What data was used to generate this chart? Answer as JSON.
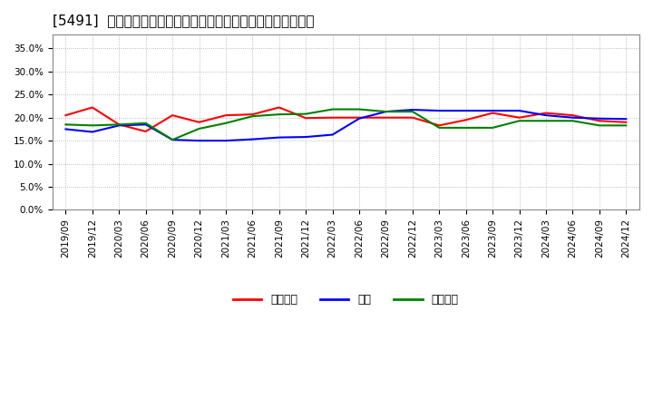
{
  "title": "[5491]  売上債権、在庫、買入債務の総資産に対する比率の推移",
  "x_labels": [
    "2019/09",
    "2019/12",
    "2020/03",
    "2020/06",
    "2020/09",
    "2020/12",
    "2021/03",
    "2021/06",
    "2021/09",
    "2021/12",
    "2022/03",
    "2022/06",
    "2022/09",
    "2022/12",
    "2023/03",
    "2023/06",
    "2023/09",
    "2023/12",
    "2024/03",
    "2024/06",
    "2024/09",
    "2024/12"
  ],
  "receivables": [
    0.205,
    0.222,
    0.185,
    0.17,
    0.205,
    0.19,
    0.205,
    0.207,
    0.222,
    0.199,
    0.2,
    0.2,
    0.2,
    0.2,
    0.183,
    0.195,
    0.21,
    0.2,
    0.21,
    0.205,
    0.193,
    0.19
  ],
  "inventory": [
    0.175,
    0.169,
    0.183,
    0.185,
    0.152,
    0.15,
    0.15,
    0.153,
    0.157,
    0.158,
    0.163,
    0.198,
    0.213,
    0.217,
    0.215,
    0.215,
    0.215,
    0.215,
    0.205,
    0.2,
    0.198,
    0.197
  ],
  "payables": [
    0.185,
    0.183,
    0.185,
    0.188,
    0.152,
    0.176,
    0.188,
    0.203,
    0.207,
    0.208,
    0.218,
    0.218,
    0.213,
    0.213,
    0.178,
    0.178,
    0.178,
    0.193,
    0.193,
    0.193,
    0.183,
    0.183
  ],
  "receivables_color": "#ff0000",
  "inventory_color": "#0000ff",
  "payables_color": "#008000",
  "ylim": [
    0.0,
    0.38
  ],
  "yticks": [
    0.0,
    0.05,
    0.1,
    0.15,
    0.2,
    0.25,
    0.3,
    0.35
  ],
  "legend_labels": [
    "売上債権",
    "在庫",
    "買入債務"
  ],
  "bg_color": "#ffffff",
  "plot_bg_color": "#ffffff",
  "grid_color": "#aaaaaa",
  "title_fontsize": 11,
  "axis_fontsize": 7.5
}
